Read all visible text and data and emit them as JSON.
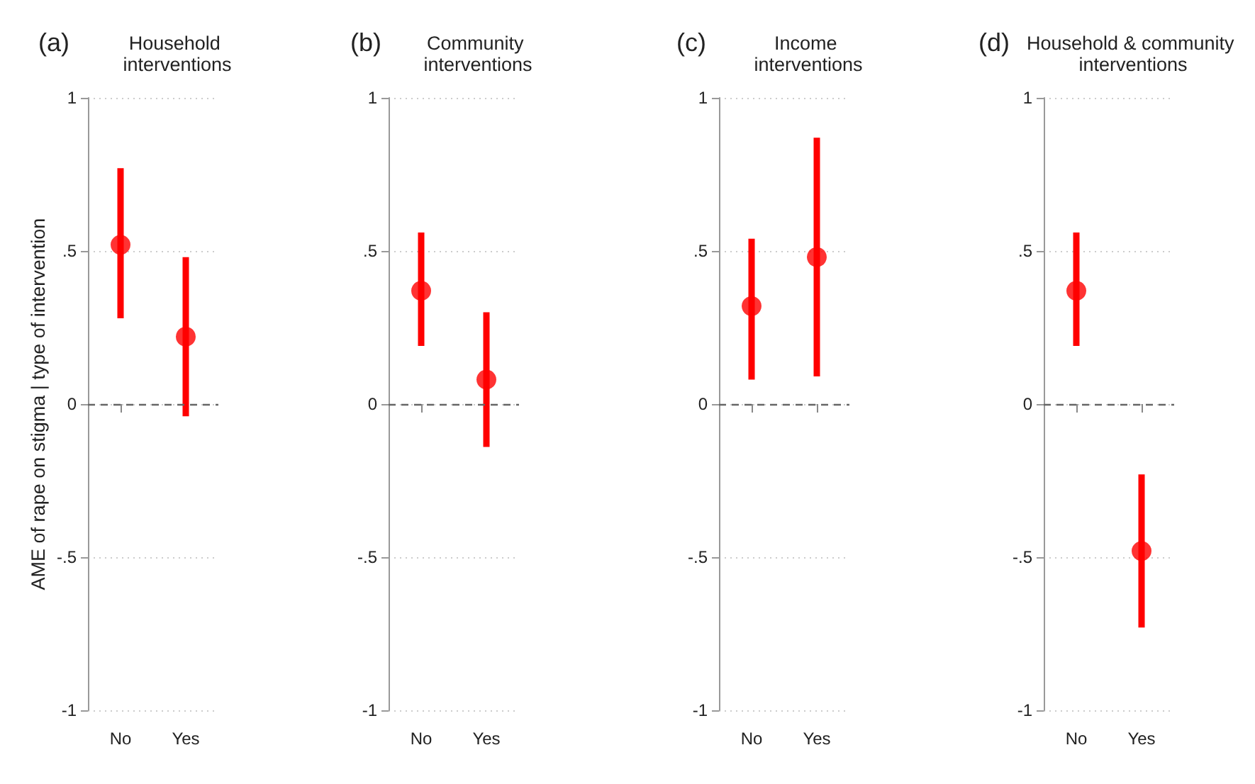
{
  "chart_data": [
    {
      "type": "scatter",
      "title": "(a)",
      "subtitle": "Household interventions",
      "ylabel": "AME of rape on stigma | type of intervention",
      "categories": [
        "No",
        "Yes"
      ],
      "series": [
        {
          "color": "#ff0000",
          "values": [
            0.52,
            0.22
          ],
          "errors": [
            [
              0.28,
              0.77
            ],
            [
              -0.04,
              0.48
            ]
          ]
        }
      ],
      "ylim": [
        -1,
        1
      ],
      "yticks": [
        {
          "value": -1,
          "label": "-1"
        },
        {
          "value": -0.5,
          "label": "-.5"
        },
        {
          "value": 0,
          "label": "0"
        },
        {
          "value": 0.5,
          "label": ".5"
        },
        {
          "value": 1,
          "label": "1"
        }
      ],
      "grid": "y",
      "marker": "circle",
      "ref_lines": [
        {
          "axis": "y",
          "value": 0,
          "color": "#666666",
          "line_style": "dashed"
        }
      ]
    },
    {
      "type": "scatter",
      "title": "(b)",
      "subtitle": "Community interventions",
      "categories": [
        "No",
        "Yes"
      ],
      "series": [
        {
          "color": "#ff0000",
          "values": [
            0.37,
            0.08
          ],
          "errors": [
            [
              0.19,
              0.56
            ],
            [
              -0.14,
              0.3
            ]
          ]
        }
      ],
      "ylim": [
        -1,
        1
      ],
      "yticks": [
        {
          "value": -1,
          "label": "-1"
        },
        {
          "value": -0.5,
          "label": "-.5"
        },
        {
          "value": 0,
          "label": "0"
        },
        {
          "value": 0.5,
          "label": ".5"
        },
        {
          "value": 1,
          "label": "1"
        }
      ],
      "grid": "y",
      "marker": "circle",
      "ref_lines": [
        {
          "axis": "y",
          "value": 0,
          "color": "#666666",
          "line_style": "dashed"
        }
      ]
    },
    {
      "type": "scatter",
      "title": "(c)",
      "subtitle": "Income interventions",
      "categories": [
        "No",
        "Yes"
      ],
      "series": [
        {
          "color": "#ff0000",
          "values": [
            0.32,
            0.48
          ],
          "errors": [
            [
              0.08,
              0.54
            ],
            [
              0.09,
              0.87
            ]
          ]
        }
      ],
      "ylim": [
        -1,
        1
      ],
      "yticks": [
        {
          "value": -1,
          "label": "-1"
        },
        {
          "value": -0.5,
          "label": "-.5"
        },
        {
          "value": 0,
          "label": "0"
        },
        {
          "value": 0.5,
          "label": ".5"
        },
        {
          "value": 1,
          "label": "1"
        }
      ],
      "grid": "y",
      "marker": "circle",
      "ref_lines": [
        {
          "axis": "y",
          "value": 0,
          "color": "#666666",
          "line_style": "dashed"
        }
      ]
    },
    {
      "type": "scatter",
      "title": "(d)",
      "subtitle": "Household & community interventions",
      "categories": [
        "No",
        "Yes"
      ],
      "series": [
        {
          "color": "#ff0000",
          "values": [
            0.37,
            -0.48
          ],
          "errors": [
            [
              0.19,
              0.56
            ],
            [
              -0.73,
              -0.23
            ]
          ]
        }
      ],
      "ylim": [
        -1,
        1
      ],
      "yticks": [
        {
          "value": -1,
          "label": "-1"
        },
        {
          "value": -0.5,
          "label": "-.5"
        },
        {
          "value": 0,
          "label": "0"
        },
        {
          "value": 0.5,
          "label": ".5"
        },
        {
          "value": 1,
          "label": "1"
        }
      ],
      "grid": "y",
      "marker": "circle",
      "ref_lines": [
        {
          "axis": "y",
          "value": 0,
          "color": "#666666",
          "line_style": "dashed"
        }
      ]
    }
  ]
}
